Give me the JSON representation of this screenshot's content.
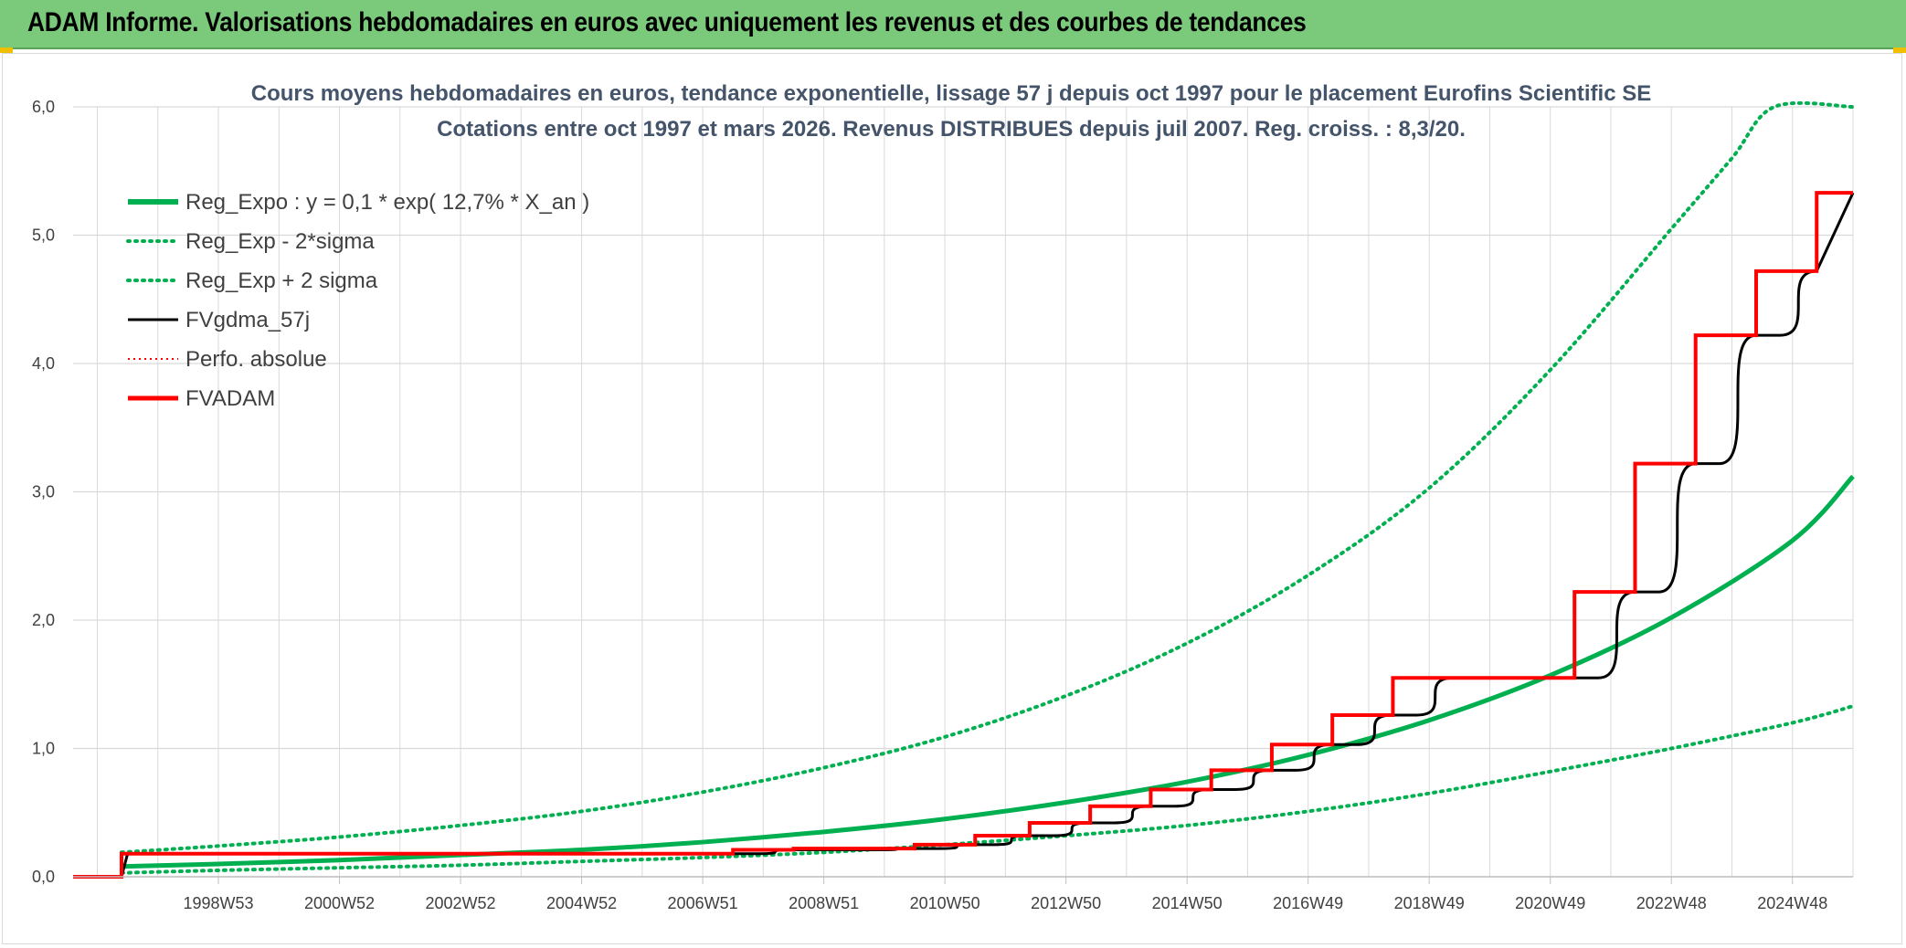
{
  "header": {
    "title": "ADAM Informe. Valorisations hebdomadaires en euros avec uniquement les revenus et des courbes de tendances"
  },
  "colors": {
    "header_bg": "#7bc97b",
    "reg_green": "#00b050",
    "fv_black": "#000000",
    "adam_red": "#ff0000",
    "grid": "#d9d9d9"
  },
  "chart_data": {
    "type": "line",
    "title_line1": "Cours moyens hebdomadaires en euros, tendance exponentielle, lissage 57 j depuis oct 1997 pour le placement Eurofins Scientific SE",
    "title_line2": "Cotations entre oct 1997 et mars 2026. Revenus DISTRIBUES depuis juil 2007. Reg. croiss. : 8,3/20.",
    "xlabel": "",
    "ylabel": "",
    "ylim": [
      0,
      6
    ],
    "xlim": [
      1996.6,
      2026.0
    ],
    "y_ticks": [
      "0,0",
      "1,0",
      "2,0",
      "3,0",
      "4,0",
      "5,0",
      "6,0"
    ],
    "x_ticks": [
      {
        "label": "1998W53",
        "x": 1999.0
      },
      {
        "label": "2000W52",
        "x": 2001.0
      },
      {
        "label": "2002W52",
        "x": 2003.0
      },
      {
        "label": "2004W52",
        "x": 2005.0
      },
      {
        "label": "2006W51",
        "x": 2007.0
      },
      {
        "label": "2008W51",
        "x": 2009.0
      },
      {
        "label": "2010W50",
        "x": 2011.0
      },
      {
        "label": "2012W50",
        "x": 2013.0
      },
      {
        "label": "2014W50",
        "x": 2015.0
      },
      {
        "label": "2016W49",
        "x": 2017.0
      },
      {
        "label": "2018W49",
        "x": 2019.0
      },
      {
        "label": "2020W49",
        "x": 2021.0
      },
      {
        "label": "2022W48",
        "x": 2023.0
      },
      {
        "label": "2024W48",
        "x": 2025.0
      }
    ],
    "grid": true,
    "legend_position": "top-left",
    "series": [
      {
        "name": "Reg_Expo : y = 0,1 * exp( 12,7% *  X_an )",
        "style": "solid-thick",
        "x": [
          1997.4,
          1999,
          2001,
          2003,
          2005,
          2007,
          2009,
          2011,
          2013,
          2015,
          2017,
          2019,
          2021,
          2023,
          2025,
          2026.0
        ],
        "y": [
          0.08,
          0.1,
          0.13,
          0.17,
          0.21,
          0.27,
          0.35,
          0.45,
          0.58,
          0.74,
          0.95,
          1.22,
          1.57,
          2.02,
          2.62,
          3.12
        ]
      },
      {
        "name": "Reg_Exp - 2*sigma",
        "style": "dotted",
        "x": [
          1997.4,
          1999,
          2001,
          2003,
          2005,
          2007,
          2009,
          2011,
          2013,
          2015,
          2017,
          2019,
          2021,
          2023,
          2025,
          2026.0
        ],
        "y": [
          0.03,
          0.05,
          0.07,
          0.09,
          0.12,
          0.15,
          0.19,
          0.25,
          0.32,
          0.4,
          0.51,
          0.65,
          0.82,
          1.0,
          1.2,
          1.33
        ]
      },
      {
        "name": "Reg_Exp + 2 sigma",
        "style": "dotted",
        "x": [
          1997.4,
          1999,
          2001,
          2003,
          2005,
          2007,
          2009,
          2011,
          2013,
          2015,
          2017,
          2019,
          2021,
          2023,
          2024.0,
          2024.7,
          2026.0
        ],
        "y": [
          0.19,
          0.24,
          0.31,
          0.4,
          0.51,
          0.66,
          0.85,
          1.09,
          1.41,
          1.82,
          2.35,
          3.03,
          3.95,
          5.05,
          5.6,
          6.0,
          6.0
        ]
      },
      {
        "name": "FVgdma_57j",
        "style": "solid",
        "x": [
          1996.6,
          1997.4,
          1997.5,
          2007.5,
          2008.5,
          2010.5,
          2011.5,
          2012.4,
          2013.4,
          2014.4,
          2015.4,
          2016.4,
          2017.4,
          2018.4,
          2019.4,
          2021.4,
          2022.4,
          2023.4,
          2024.4,
          2025.4,
          2026.0
        ],
        "y": [
          0.0,
          0.0,
          0.18,
          0.18,
          0.21,
          0.22,
          0.25,
          0.32,
          0.42,
          0.55,
          0.68,
          0.83,
          1.03,
          1.26,
          1.55,
          1.55,
          2.22,
          3.22,
          4.22,
          4.72,
          5.33
        ]
      },
      {
        "name": "Perfo. absolue",
        "style": "dotted-red",
        "x": [],
        "y": []
      },
      {
        "name": "FVADAM",
        "style": "step-red",
        "x": [
          1996.6,
          1997.4,
          1997.4,
          2007.5,
          2007.5,
          2008.5,
          2008.5,
          2010.5,
          2010.5,
          2011.5,
          2011.5,
          2012.4,
          2012.4,
          2013.4,
          2013.4,
          2014.4,
          2014.4,
          2015.4,
          2015.4,
          2016.4,
          2016.4,
          2017.4,
          2017.4,
          2018.4,
          2018.4,
          2021.4,
          2021.4,
          2022.4,
          2022.4,
          2023.4,
          2023.4,
          2024.4,
          2024.4,
          2025.4,
          2025.4,
          2026.0
        ],
        "y": [
          0.0,
          0.0,
          0.18,
          0.18,
          0.21,
          0.21,
          0.22,
          0.22,
          0.25,
          0.25,
          0.32,
          0.32,
          0.42,
          0.42,
          0.55,
          0.55,
          0.68,
          0.68,
          0.83,
          0.83,
          1.03,
          1.03,
          1.26,
          1.26,
          1.55,
          1.55,
          2.22,
          2.22,
          3.22,
          3.22,
          4.22,
          4.22,
          4.72,
          4.72,
          5.33,
          5.33
        ]
      }
    ]
  }
}
